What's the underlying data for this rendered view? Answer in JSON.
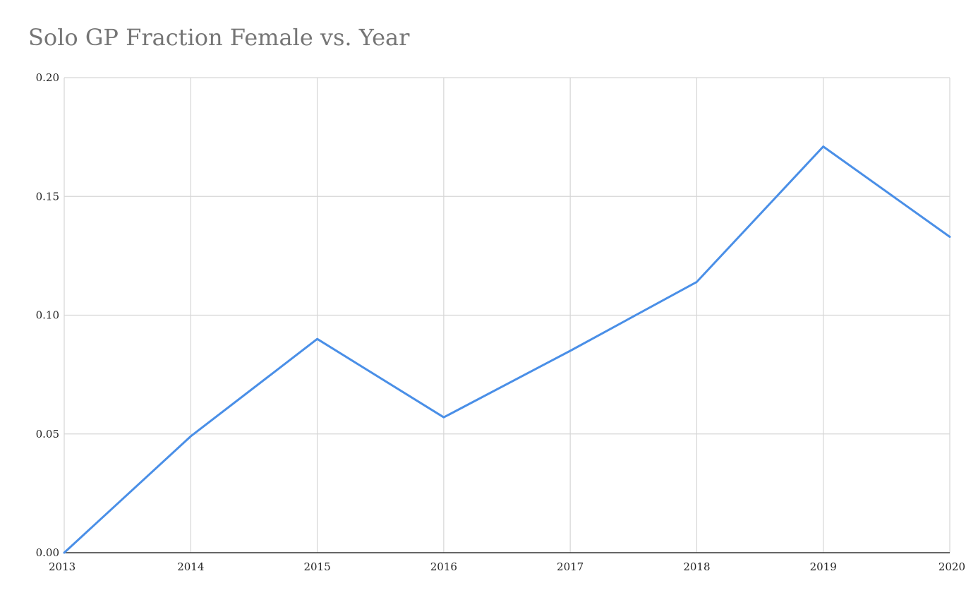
{
  "chart_data": {
    "type": "line",
    "title": "Solo GP Fraction Female vs. Year",
    "xlabel": "",
    "ylabel": "",
    "x": [
      2013,
      2014,
      2015,
      2016,
      2017,
      2018,
      2019,
      2020
    ],
    "x_tick_labels": [
      "2013",
      "2014",
      "2015",
      "2016",
      "2017",
      "2018",
      "2019",
      "2020"
    ],
    "y_tick_labels": [
      "0.00",
      "0.05",
      "0.10",
      "0.15",
      "0.20"
    ],
    "y_ticks": [
      0,
      0.05,
      0.1,
      0.15,
      0.2
    ],
    "ylim": [
      0,
      0.2
    ],
    "grid": true,
    "legend": "none",
    "series": [
      {
        "color": "#4a8fe7",
        "values": [
          0.0,
          0.049,
          0.09,
          0.057,
          0.085,
          0.114,
          0.171,
          0.133
        ]
      }
    ]
  }
}
